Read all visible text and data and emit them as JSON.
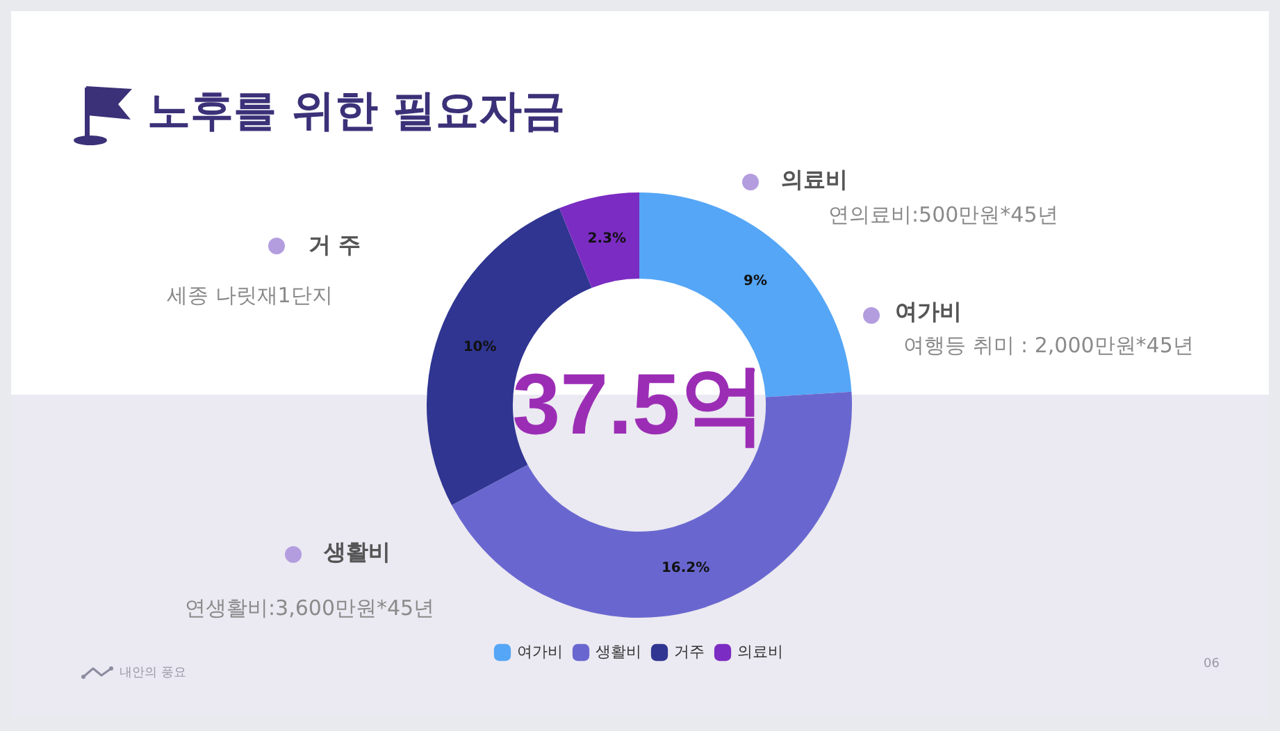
{
  "chart_data": {
    "type": "donut",
    "title": "노후를 위한 필요자금",
    "categories": [
      "여가비",
      "생활비",
      "거주",
      "의료비"
    ],
    "values": [
      9,
      16.2,
      10,
      2.3
    ],
    "colors": [
      "#55a6f6",
      "#6967cf",
      "#2f3591",
      "#7b2cc2"
    ],
    "value_labels": [
      "9%",
      "16.2%",
      "10%",
      "2.3%"
    ],
    "legend": "bottom",
    "annotations": [
      "37.5억",
      "의료비",
      "연의료비:500만원*45년",
      "여가비",
      "여행등 취미 : 2,000만원*45년",
      "거 주",
      "세종 나릿재1단지",
      "생활비",
      "연생활비:3,600만원*45년",
      "내안의 풍요",
      "06"
    ]
  }
}
